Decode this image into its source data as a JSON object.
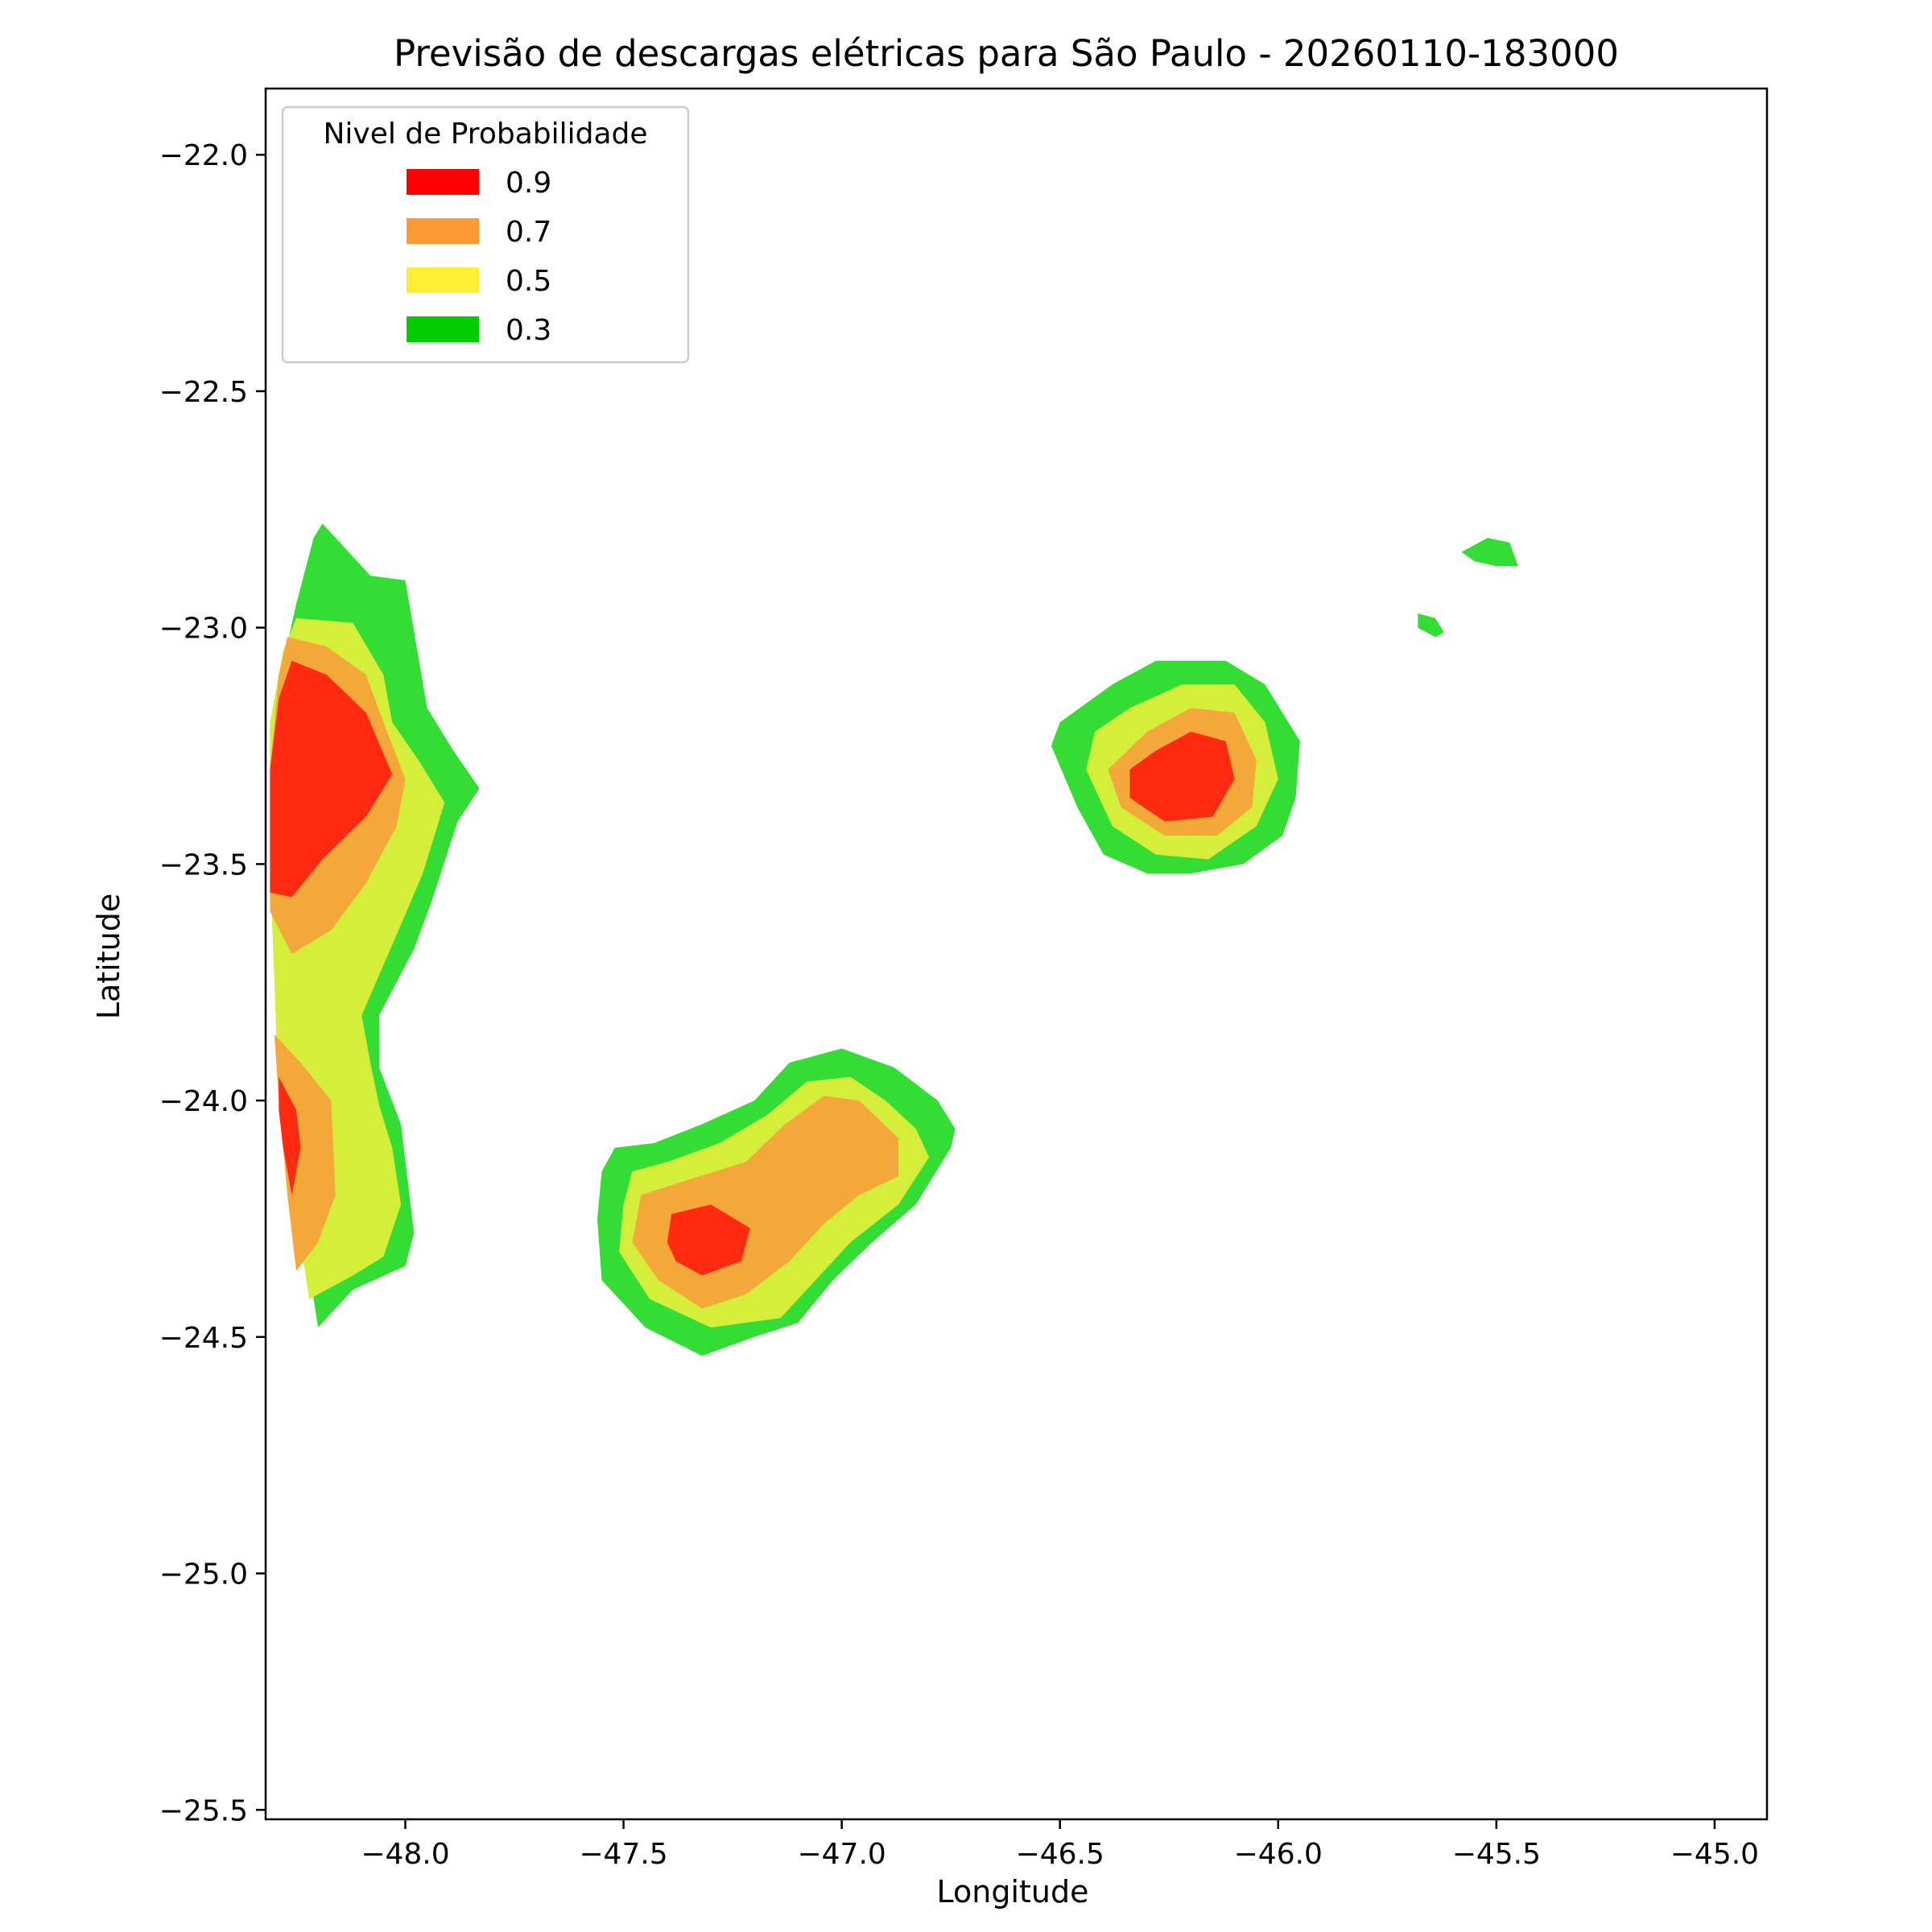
{
  "chart_data": {
    "type": "contour",
    "title": "Previsão de descargas elétricas para São Paulo - 20260110-183000",
    "xlabel": "Longitude",
    "ylabel": "Latitude",
    "xlim": [
      -48.32,
      -44.88
    ],
    "ylim": [
      -25.52,
      -21.86
    ],
    "x_ticks": [
      -48.0,
      -47.5,
      -47.0,
      -46.5,
      -46.0,
      -45.5,
      -45.0
    ],
    "x_tick_labels": [
      "−48.0",
      "−47.5",
      "−47.0",
      "−46.5",
      "−46.0",
      "−45.5",
      "−45.0"
    ],
    "y_ticks": [
      -22.0,
      -22.5,
      -23.0,
      -23.5,
      -24.0,
      -24.5,
      -25.0,
      -25.5
    ],
    "y_tick_labels": [
      "−22.0",
      "−22.5",
      "−23.0",
      "−23.5",
      "−24.0",
      "−24.5",
      "−25.0",
      "−25.5"
    ],
    "grid": false,
    "legend": {
      "title": "Nivel de Probabilidade",
      "placement": "upper-left",
      "entries": [
        {
          "label": "0.9",
          "color": "#ff0000"
        },
        {
          "label": "0.7",
          "color": "#ff9933"
        },
        {
          "label": "0.5",
          "color": "#ffee33"
        },
        {
          "label": "0.3",
          "color": "#00cc00"
        }
      ]
    },
    "fill_colors": {
      "0.3": "#33dd33",
      "0.5": "#d4ee3a",
      "0.7": "#f5a83a",
      "0.9": "#ff2a10"
    },
    "regions": [
      {
        "name": "west-strip",
        "levels": [
          {
            "level": 0.3,
            "polygon": [
              [
                -48.19,
                -22.78
              ],
              [
                -48.08,
                -22.89
              ],
              [
                -48.0,
                -22.9
              ],
              [
                -47.95,
                -23.17
              ],
              [
                -47.89,
                -23.26
              ],
              [
                -47.83,
                -23.34
              ],
              [
                -47.88,
                -23.41
              ],
              [
                -47.94,
                -23.58
              ],
              [
                -47.98,
                -23.68
              ],
              [
                -48.06,
                -23.82
              ],
              [
                -48.06,
                -23.93
              ],
              [
                -48.01,
                -24.05
              ],
              [
                -47.98,
                -24.28
              ],
              [
                -48.0,
                -24.35
              ],
              [
                -48.12,
                -24.4
              ],
              [
                -48.2,
                -24.48
              ],
              [
                -48.28,
                -24.0
              ],
              [
                -48.31,
                -23.5
              ],
              [
                -48.31,
                -23.2
              ],
              [
                -48.25,
                -22.95
              ],
              [
                -48.21,
                -22.81
              ]
            ]
          },
          {
            "level": 0.5,
            "polygon": [
              [
                -48.25,
                -22.98
              ],
              [
                -48.12,
                -22.99
              ],
              [
                -48.05,
                -23.1
              ],
              [
                -48.03,
                -23.2
              ],
              [
                -47.97,
                -23.28
              ],
              [
                -47.91,
                -23.37
              ],
              [
                -47.96,
                -23.52
              ],
              [
                -48.02,
                -23.65
              ],
              [
                -48.1,
                -23.82
              ],
              [
                -48.08,
                -23.92
              ],
              [
                -48.06,
                -24.01
              ],
              [
                -48.03,
                -24.1
              ],
              [
                -48.01,
                -24.22
              ],
              [
                -48.05,
                -24.33
              ],
              [
                -48.12,
                -24.37
              ],
              [
                -48.22,
                -24.42
              ],
              [
                -48.29,
                -24.0
              ],
              [
                -48.31,
                -23.5
              ],
              [
                -48.31,
                -23.2
              ],
              [
                -48.28,
                -23.05
              ]
            ]
          },
          {
            "level": 0.7,
            "polygon": [
              [
                -48.27,
                -23.02
              ],
              [
                -48.18,
                -23.04
              ],
              [
                -48.09,
                -23.1
              ],
              [
                -48.05,
                -23.2
              ],
              [
                -48.0,
                -23.32
              ],
              [
                -48.02,
                -23.42
              ],
              [
                -48.09,
                -23.54
              ],
              [
                -48.17,
                -23.64
              ],
              [
                -48.26,
                -23.69
              ],
              [
                -48.31,
                -23.6
              ],
              [
                -48.31,
                -23.3
              ],
              [
                -48.29,
                -23.1
              ]
            ]
          },
          {
            "level": 0.9,
            "polygon": [
              [
                -48.26,
                -23.07
              ],
              [
                -48.18,
                -23.1
              ],
              [
                -48.09,
                -23.18
              ],
              [
                -48.03,
                -23.31
              ],
              [
                -48.09,
                -23.4
              ],
              [
                -48.19,
                -23.49
              ],
              [
                -48.26,
                -23.57
              ],
              [
                -48.31,
                -23.56
              ],
              [
                -48.31,
                -23.3
              ],
              [
                -48.29,
                -23.15
              ]
            ]
          },
          {
            "level": 0.7,
            "polygon": [
              [
                -48.3,
                -23.86
              ],
              [
                -48.24,
                -23.92
              ],
              [
                -48.17,
                -24.0
              ],
              [
                -48.16,
                -24.2
              ],
              [
                -48.2,
                -24.3
              ],
              [
                -48.25,
                -24.36
              ],
              [
                -48.27,
                -24.2
              ],
              [
                -48.29,
                -24.0
              ]
            ]
          },
          {
            "level": 0.9,
            "polygon": [
              [
                -48.29,
                -23.95
              ],
              [
                -48.25,
                -24.02
              ],
              [
                -48.24,
                -24.1
              ],
              [
                -48.26,
                -24.2
              ],
              [
                -48.28,
                -24.1
              ],
              [
                -48.29,
                -24.02
              ]
            ]
          }
        ]
      },
      {
        "name": "center-blob",
        "levels": [
          {
            "level": 0.3,
            "polygon": [
              [
                -47.52,
                -24.1
              ],
              [
                -47.43,
                -24.09
              ],
              [
                -47.32,
                -24.05
              ],
              [
                -47.2,
                -24.0
              ],
              [
                -47.12,
                -23.92
              ],
              [
                -47.0,
                -23.89
              ],
              [
                -46.88,
                -23.93
              ],
              [
                -46.78,
                -24.0
              ],
              [
                -46.74,
                -24.06
              ],
              [
                -46.75,
                -24.1
              ],
              [
                -46.83,
                -24.22
              ],
              [
                -46.93,
                -24.3
              ],
              [
                -47.02,
                -24.38
              ],
              [
                -47.1,
                -24.47
              ],
              [
                -47.2,
                -24.5
              ],
              [
                -47.32,
                -24.54
              ],
              [
                -47.45,
                -24.48
              ],
              [
                -47.55,
                -24.38
              ],
              [
                -47.56,
                -24.25
              ],
              [
                -47.55,
                -24.15
              ]
            ]
          },
          {
            "level": 0.5,
            "polygon": [
              [
                -47.48,
                -24.15
              ],
              [
                -47.4,
                -24.13
              ],
              [
                -47.28,
                -24.09
              ],
              [
                -47.17,
                -24.03
              ],
              [
                -47.08,
                -23.96
              ],
              [
                -46.98,
                -23.95
              ],
              [
                -46.9,
                -24.0
              ],
              [
                -46.83,
                -24.06
              ],
              [
                -46.8,
                -24.12
              ],
              [
                -46.87,
                -24.22
              ],
              [
                -46.98,
                -24.3
              ],
              [
                -47.06,
                -24.38
              ],
              [
                -47.14,
                -24.46
              ],
              [
                -47.3,
                -24.48
              ],
              [
                -47.44,
                -24.42
              ],
              [
                -47.51,
                -24.32
              ],
              [
                -47.5,
                -24.22
              ]
            ]
          },
          {
            "level": 0.7,
            "polygon": [
              [
                -47.46,
                -24.2
              ],
              [
                -47.36,
                -24.17
              ],
              [
                -47.22,
                -24.13
              ],
              [
                -47.13,
                -24.05
              ],
              [
                -47.04,
                -23.99
              ],
              [
                -46.96,
                -24.0
              ],
              [
                -46.87,
                -24.08
              ],
              [
                -46.87,
                -24.16
              ],
              [
                -46.96,
                -24.2
              ],
              [
                -47.04,
                -24.26
              ],
              [
                -47.12,
                -24.34
              ],
              [
                -47.22,
                -24.41
              ],
              [
                -47.32,
                -24.44
              ],
              [
                -47.42,
                -24.38
              ],
              [
                -47.48,
                -24.3
              ]
            ]
          },
          {
            "level": 0.9,
            "polygon": [
              [
                -47.39,
                -24.24
              ],
              [
                -47.3,
                -24.22
              ],
              [
                -47.21,
                -24.27
              ],
              [
                -47.23,
                -24.34
              ],
              [
                -47.32,
                -24.37
              ],
              [
                -47.38,
                -24.34
              ],
              [
                -47.4,
                -24.3
              ]
            ]
          }
        ]
      },
      {
        "name": "east-blob",
        "levels": [
          {
            "level": 0.3,
            "polygon": [
              [
                -46.38,
                -23.12
              ],
              [
                -46.28,
                -23.07
              ],
              [
                -46.12,
                -23.07
              ],
              [
                -46.03,
                -23.12
              ],
              [
                -45.95,
                -23.24
              ],
              [
                -45.96,
                -23.36
              ],
              [
                -45.99,
                -23.44
              ],
              [
                -46.08,
                -23.5
              ],
              [
                -46.2,
                -23.52
              ],
              [
                -46.3,
                -23.52
              ],
              [
                -46.4,
                -23.48
              ],
              [
                -46.46,
                -23.38
              ],
              [
                -46.52,
                -23.25
              ],
              [
                -46.5,
                -23.2
              ]
            ]
          },
          {
            "level": 0.5,
            "polygon": [
              [
                -46.34,
                -23.17
              ],
              [
                -46.22,
                -23.12
              ],
              [
                -46.1,
                -23.12
              ],
              [
                -46.03,
                -23.2
              ],
              [
                -46.0,
                -23.32
              ],
              [
                -46.05,
                -23.42
              ],
              [
                -46.16,
                -23.49
              ],
              [
                -46.28,
                -23.48
              ],
              [
                -46.38,
                -23.42
              ],
              [
                -46.44,
                -23.3
              ],
              [
                -46.42,
                -23.22
              ]
            ]
          },
          {
            "level": 0.7,
            "polygon": [
              [
                -46.3,
                -23.22
              ],
              [
                -46.2,
                -23.17
              ],
              [
                -46.1,
                -23.18
              ],
              [
                -46.05,
                -23.28
              ],
              [
                -46.06,
                -23.38
              ],
              [
                -46.14,
                -23.44
              ],
              [
                -46.26,
                -23.44
              ],
              [
                -46.36,
                -23.38
              ],
              [
                -46.39,
                -23.3
              ]
            ]
          },
          {
            "level": 0.9,
            "polygon": [
              [
                -46.28,
                -23.26
              ],
              [
                -46.2,
                -23.22
              ],
              [
                -46.12,
                -23.24
              ],
              [
                -46.1,
                -23.32
              ],
              [
                -46.15,
                -23.4
              ],
              [
                -46.26,
                -23.41
              ],
              [
                -46.34,
                -23.36
              ],
              [
                -46.34,
                -23.3
              ]
            ]
          }
        ]
      },
      {
        "name": "small-island-1",
        "levels": [
          {
            "level": 0.3,
            "polygon": [
              [
                -45.68,
                -22.97
              ],
              [
                -45.64,
                -22.98
              ],
              [
                -45.62,
                -23.01
              ],
              [
                -45.64,
                -23.02
              ],
              [
                -45.68,
                -23.0
              ]
            ]
          }
        ]
      },
      {
        "name": "small-island-2",
        "levels": [
          {
            "level": 0.3,
            "polygon": [
              [
                -45.58,
                -22.84
              ],
              [
                -45.52,
                -22.81
              ],
              [
                -45.47,
                -22.82
              ],
              [
                -45.45,
                -22.87
              ],
              [
                -45.5,
                -22.87
              ],
              [
                -45.55,
                -22.86
              ]
            ]
          }
        ]
      }
    ]
  }
}
